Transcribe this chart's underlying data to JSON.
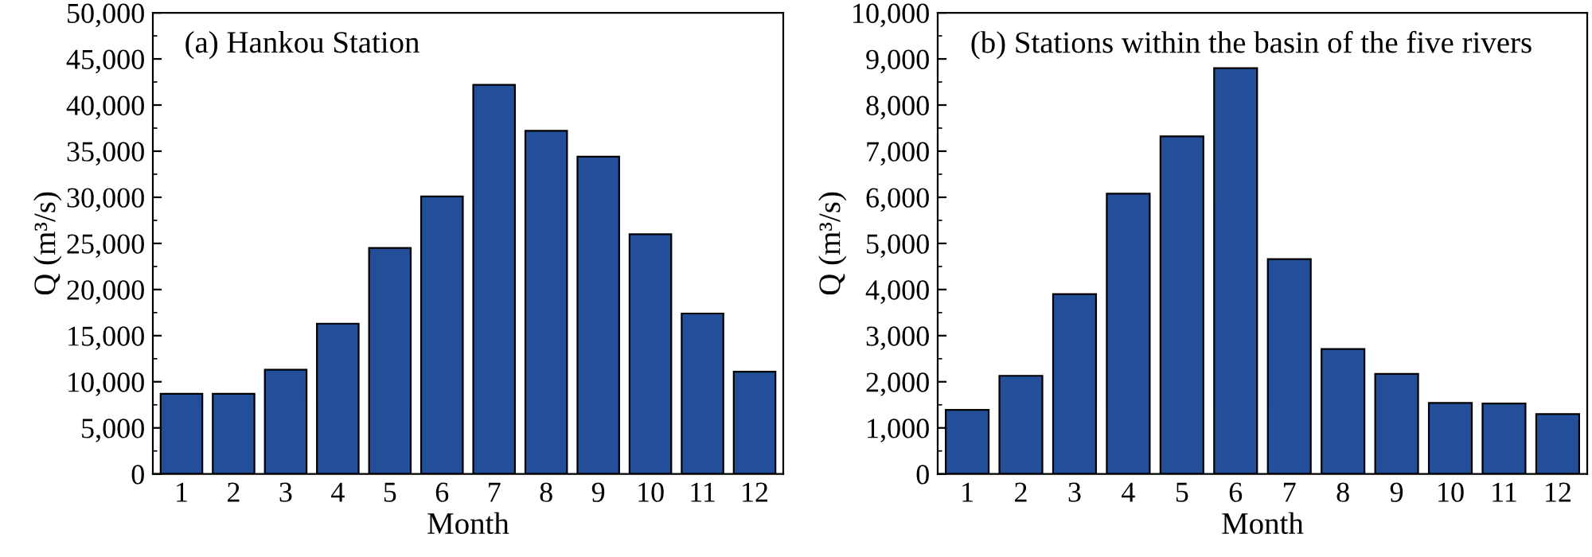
{
  "chart_data": [
    {
      "type": "bar",
      "annotations": [
        "(a) Hankou Station"
      ],
      "xlabel": "Month",
      "ylabel": "Q (m³/s)",
      "categories": [
        "1",
        "2",
        "3",
        "4",
        "5",
        "6",
        "7",
        "8",
        "9",
        "10",
        "11",
        "12"
      ],
      "values": [
        8700,
        8700,
        11300,
        16300,
        24500,
        30100,
        42200,
        37200,
        34400,
        26000,
        17400,
        11100
      ],
      "color": "#234e9a",
      "ylim": [
        0,
        50000
      ],
      "yticks": [
        {
          "value": 0,
          "label": "0"
        },
        {
          "value": 5000,
          "label": "5,000"
        },
        {
          "value": 10000,
          "label": "10,000"
        },
        {
          "value": 15000,
          "label": "15,000"
        },
        {
          "value": 20000,
          "label": "20,000"
        },
        {
          "value": 25000,
          "label": "25,000"
        },
        {
          "value": 30000,
          "label": "30,000"
        },
        {
          "value": 35000,
          "label": "35,000"
        },
        {
          "value": 40000,
          "label": "40,000"
        },
        {
          "value": 45000,
          "label": "45,000"
        },
        {
          "value": 50000,
          "label": "50,000"
        }
      ],
      "grid": false,
      "legend": false
    },
    {
      "type": "bar",
      "annotations": [
        "(b) Stations within the basin of the five rivers"
      ],
      "xlabel": "Month",
      "ylabel": "Q (m³/s)",
      "categories": [
        "1",
        "2",
        "3",
        "4",
        "5",
        "6",
        "7",
        "8",
        "9",
        "10",
        "11",
        "12"
      ],
      "values": [
        1390,
        2130,
        3900,
        6080,
        7320,
        8800,
        4660,
        2710,
        2170,
        1540,
        1530,
        1300
      ],
      "color": "#234e9a",
      "ylim": [
        0,
        10000
      ],
      "yticks": [
        {
          "value": 0,
          "label": "0"
        },
        {
          "value": 1000,
          "label": "1,000"
        },
        {
          "value": 2000,
          "label": "2,000"
        },
        {
          "value": 3000,
          "label": "3,000"
        },
        {
          "value": 4000,
          "label": "4,000"
        },
        {
          "value": 5000,
          "label": "5,000"
        },
        {
          "value": 6000,
          "label": "6,000"
        },
        {
          "value": 7000,
          "label": "7,000"
        },
        {
          "value": 8000,
          "label": "8,000"
        },
        {
          "value": 9000,
          "label": "9,000"
        },
        {
          "value": 10000,
          "label": "10,000"
        }
      ],
      "grid": false,
      "legend": false
    }
  ]
}
